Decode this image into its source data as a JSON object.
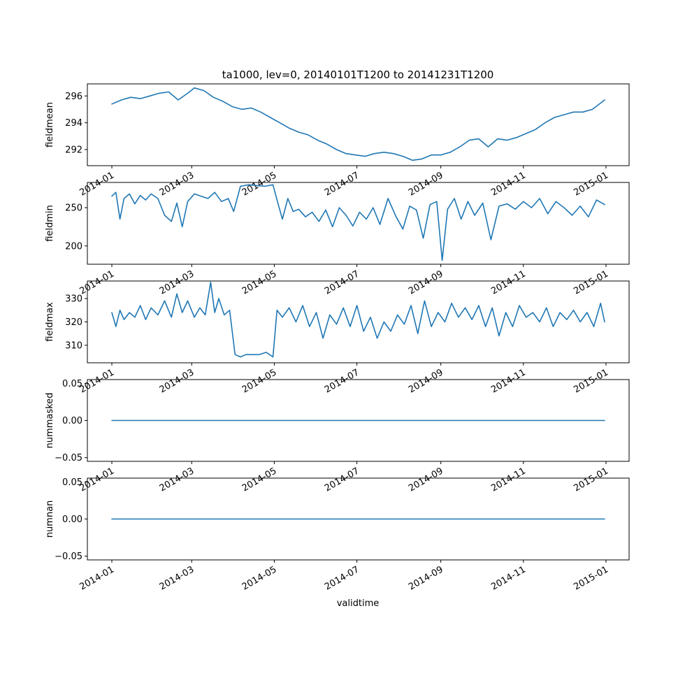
{
  "chart_data": {
    "type": "line",
    "title": "ta1000, lev=0, 20140101T1200 to 20141231T1200",
    "xlabel": "validtime",
    "x_domain": [
      "2014-01-01",
      "2014-12-31"
    ],
    "x_ticks": [
      "2014-01",
      "2014-03",
      "2014-05",
      "2014-07",
      "2014-09",
      "2014-11",
      "2015-01"
    ],
    "line_color": "#1f77b4",
    "grid": false,
    "legend": "none",
    "panels": [
      {
        "ylabel": "fieldmean",
        "ylim": [
          290.8,
          296.9
        ],
        "yticks": [
          292,
          294,
          296
        ],
        "ytick_labels": [
          "292",
          "294",
          "296"
        ],
        "series": [
          {
            "x": [
              "2014-01-01",
              "2014-01-08",
              "2014-01-15",
              "2014-01-22",
              "2014-01-29",
              "2014-02-05",
              "2014-02-12",
              "2014-02-19",
              "2014-02-26",
              "2014-03-03",
              "2014-03-10",
              "2014-03-17",
              "2014-03-24",
              "2014-03-31",
              "2014-04-07",
              "2014-04-14",
              "2014-04-21",
              "2014-04-28",
              "2014-05-05",
              "2014-05-12",
              "2014-05-19",
              "2014-05-26",
              "2014-06-02",
              "2014-06-09",
              "2014-06-16",
              "2014-06-23",
              "2014-06-30",
              "2014-07-07",
              "2014-07-14",
              "2014-07-21",
              "2014-07-28",
              "2014-08-04",
              "2014-08-11",
              "2014-08-18",
              "2014-08-25",
              "2014-09-01",
              "2014-09-08",
              "2014-09-15",
              "2014-09-22",
              "2014-09-29",
              "2014-10-06",
              "2014-10-13",
              "2014-10-20",
              "2014-10-27",
              "2014-11-03",
              "2014-11-10",
              "2014-11-17",
              "2014-11-24",
              "2014-12-01",
              "2014-12-08",
              "2014-12-15",
              "2014-12-22",
              "2014-12-31"
            ],
            "y": [
              295.4,
              295.7,
              295.9,
              295.8,
              296.0,
              296.2,
              296.3,
              295.7,
              296.2,
              296.6,
              296.4,
              295.9,
              295.6,
              295.2,
              295.0,
              295.1,
              294.8,
              294.4,
              294.0,
              293.6,
              293.3,
              293.1,
              292.7,
              292.4,
              292.0,
              291.7,
              291.6,
              291.5,
              291.7,
              291.8,
              291.7,
              291.5,
              291.2,
              291.3,
              291.6,
              291.6,
              291.8,
              292.2,
              292.7,
              292.8,
              292.2,
              292.8,
              292.7,
              292.9,
              293.2,
              293.5,
              294.0,
              294.4,
              294.6,
              294.8,
              294.8,
              295.0,
              295.7
            ]
          }
        ]
      },
      {
        "ylabel": "fieldmin",
        "ylim": [
          176,
          283
        ],
        "yticks": [
          200,
          250
        ],
        "ytick_labels": [
          "200",
          "250"
        ],
        "series": [
          {
            "x": [
              "2014-01-01",
              "2014-01-04",
              "2014-01-07",
              "2014-01-10",
              "2014-01-14",
              "2014-01-18",
              "2014-01-22",
              "2014-01-26",
              "2014-01-30",
              "2014-02-04",
              "2014-02-09",
              "2014-02-14",
              "2014-02-18",
              "2014-02-22",
              "2014-02-26",
              "2014-03-03",
              "2014-03-08",
              "2014-03-13",
              "2014-03-18",
              "2014-03-23",
              "2014-03-28",
              "2014-04-01",
              "2014-04-06",
              "2014-04-12",
              "2014-04-18",
              "2014-04-24",
              "2014-04-30",
              "2014-05-03",
              "2014-05-07",
              "2014-05-11",
              "2014-05-15",
              "2014-05-19",
              "2014-05-24",
              "2014-05-29",
              "2014-06-03",
              "2014-06-08",
              "2014-06-13",
              "2014-06-18",
              "2014-06-23",
              "2014-06-28",
              "2014-07-03",
              "2014-07-08",
              "2014-07-13",
              "2014-07-18",
              "2014-07-24",
              "2014-07-30",
              "2014-08-04",
              "2014-08-09",
              "2014-08-14",
              "2014-08-19",
              "2014-08-24",
              "2014-08-29",
              "2014-09-02",
              "2014-09-06",
              "2014-09-11",
              "2014-09-16",
              "2014-09-21",
              "2014-09-26",
              "2014-10-02",
              "2014-10-08",
              "2014-10-14",
              "2014-10-20",
              "2014-10-26",
              "2014-11-01",
              "2014-11-07",
              "2014-11-13",
              "2014-11-19",
              "2014-11-25",
              "2014-12-01",
              "2014-12-07",
              "2014-12-13",
              "2014-12-19",
              "2014-12-25",
              "2014-12-31"
            ],
            "y": [
              265,
              270,
              235,
              262,
              268,
              255,
              266,
              260,
              268,
              262,
              240,
              232,
              256,
              225,
              258,
              268,
              265,
              262,
              270,
              258,
              262,
              245,
              278,
              280,
              279,
              278,
              280,
              260,
              235,
              262,
              245,
              248,
              238,
              244,
              232,
              247,
              225,
              250,
              240,
              226,
              244,
              235,
              250,
              228,
              262,
              238,
              222,
              252,
              247,
              210,
              254,
              258,
              181,
              248,
              262,
              235,
              258,
              240,
              256,
              208,
              252,
              255,
              248,
              258,
              250,
              262,
              242,
              258,
              250,
              240,
              252,
              238,
              260,
              254
            ]
          }
        ]
      },
      {
        "ylabel": "fieldmax",
        "ylim": [
          302.5,
          337.5
        ],
        "yticks": [
          310,
          320,
          330
        ],
        "ytick_labels": [
          "310",
          "320",
          "330"
        ],
        "series": [
          {
            "x": [
              "2014-01-01",
              "2014-01-04",
              "2014-01-07",
              "2014-01-10",
              "2014-01-14",
              "2014-01-18",
              "2014-01-22",
              "2014-01-26",
              "2014-01-30",
              "2014-02-04",
              "2014-02-09",
              "2014-02-14",
              "2014-02-18",
              "2014-02-22",
              "2014-02-26",
              "2014-03-03",
              "2014-03-07",
              "2014-03-11",
              "2014-03-15",
              "2014-03-18",
              "2014-03-21",
              "2014-03-25",
              "2014-03-29",
              "2014-04-02",
              "2014-04-06",
              "2014-04-10",
              "2014-04-15",
              "2014-04-20",
              "2014-04-25",
              "2014-04-30",
              "2014-05-03",
              "2014-05-07",
              "2014-05-12",
              "2014-05-17",
              "2014-05-22",
              "2014-05-27",
              "2014-06-01",
              "2014-06-06",
              "2014-06-11",
              "2014-06-16",
              "2014-06-21",
              "2014-06-26",
              "2014-07-01",
              "2014-07-06",
              "2014-07-11",
              "2014-07-16",
              "2014-07-21",
              "2014-07-26",
              "2014-07-31",
              "2014-08-05",
              "2014-08-10",
              "2014-08-15",
              "2014-08-20",
              "2014-08-25",
              "2014-08-30",
              "2014-09-04",
              "2014-09-09",
              "2014-09-14",
              "2014-09-19",
              "2014-09-24",
              "2014-09-29",
              "2014-10-04",
              "2014-10-09",
              "2014-10-14",
              "2014-10-19",
              "2014-10-24",
              "2014-10-29",
              "2014-11-03",
              "2014-11-08",
              "2014-11-13",
              "2014-11-18",
              "2014-11-23",
              "2014-11-28",
              "2014-12-03",
              "2014-12-08",
              "2014-12-13",
              "2014-12-18",
              "2014-12-23",
              "2014-12-28",
              "2014-12-31"
            ],
            "y": [
              324,
              318,
              325,
              321,
              324,
              322,
              327,
              321,
              326,
              323,
              329,
              322,
              332,
              324,
              329,
              322,
              326,
              323,
              337,
              324,
              330,
              323,
              325,
              306,
              305,
              306,
              306,
              306,
              307,
              305,
              325,
              322,
              326,
              320,
              327,
              318,
              324,
              313,
              323,
              319,
              326,
              318,
              327,
              316,
              322,
              313,
              320,
              316,
              323,
              319,
              327,
              315,
              329,
              318,
              324,
              320,
              328,
              322,
              326,
              321,
              327,
              318,
              326,
              314,
              324,
              318,
              327,
              322,
              324,
              320,
              326,
              318,
              324,
              321,
              325,
              320,
              324,
              318,
              328,
              320
            ]
          }
        ]
      },
      {
        "ylabel": "nummasked",
        "ylim": [
          -0.055,
          0.055
        ],
        "yticks": [
          -0.05,
          0.0,
          0.05
        ],
        "ytick_labels": [
          "−0.05",
          "0.00",
          "0.05"
        ],
        "series": [
          {
            "x": [
              "2014-01-01",
              "2014-12-31"
            ],
            "y": [
              0,
              0
            ]
          }
        ]
      },
      {
        "ylabel": "numnan",
        "ylim": [
          -0.055,
          0.055
        ],
        "yticks": [
          -0.05,
          0.0,
          0.05
        ],
        "ytick_labels": [
          "−0.05",
          "0.00",
          "0.05"
        ],
        "series": [
          {
            "x": [
              "2014-01-01",
              "2014-12-31"
            ],
            "y": [
              0,
              0
            ]
          }
        ]
      }
    ]
  }
}
